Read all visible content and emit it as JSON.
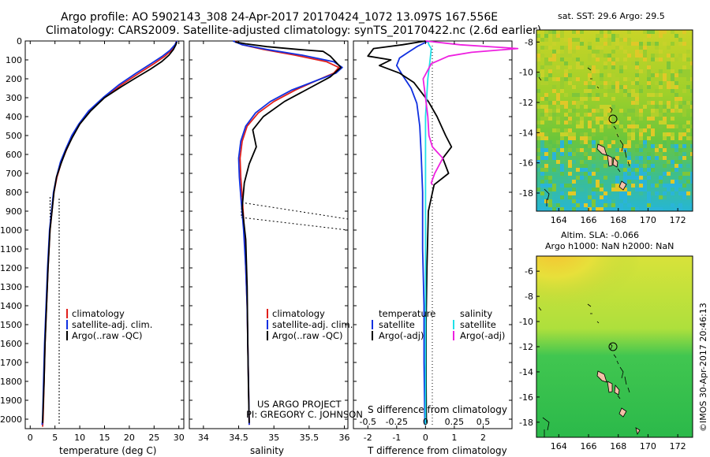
{
  "header": {
    "line1": "Argo profile: AO 5902143_308 24-Apr-2017 20170424_1072 13.097S 167.556E",
    "line2": "Climatology: CARS2009. Satellite-adjusted climatology: synTS_20170422.nc (2.6d earlier)"
  },
  "credits": {
    "project": "US ARGO PROJECT",
    "pi": "PI: GREGORY C. JOHNSON",
    "side_stamp": "©IMOS 30-Apr-2017 20:46:13"
  },
  "colors": {
    "climatology": "#e0201c",
    "satellite": "#1030e0",
    "argo": "#000000",
    "sat_salinity": "#20e0e8",
    "argo_salinity_adj": "#ee20e0"
  },
  "chart_data": [
    {
      "id": "temperature",
      "type": "line",
      "xlabel": "temperature (deg C)",
      "ylabel": "",
      "xlim": [
        -1,
        31
      ],
      "ylim": [
        2050,
        0
      ],
      "xticks": [
        0,
        5,
        10,
        15,
        20,
        25,
        30
      ],
      "yticks": [
        0,
        100,
        200,
        300,
        400,
        500,
        600,
        700,
        800,
        900,
        1000,
        1100,
        1200,
        1300,
        1400,
        1500,
        1600,
        1700,
        1800,
        1900,
        2000
      ],
      "legend": [
        "climatology",
        "satellite-adj. clim.",
        "Argo(..raw -QC)"
      ],
      "series": [
        {
          "name": "climatology",
          "color": "climatology",
          "x": [
            29.5,
            29.3,
            28.5,
            27.2,
            25.0,
            22.0,
            18.5,
            15.0,
            12.0,
            10.0,
            8.6,
            7.4,
            6.3,
            5.4,
            4.8,
            4.4,
            4.0,
            3.6,
            3.3,
            3.0,
            2.8,
            2.6,
            2.5
          ],
          "y": [
            0,
            20,
            50,
            80,
            120,
            170,
            230,
            300,
            370,
            440,
            500,
            570,
            640,
            720,
            800,
            900,
            1000,
            1200,
            1400,
            1600,
            1800,
            2000,
            2040
          ]
        },
        {
          "name": "satellite-adj. clim.",
          "color": "satellite",
          "x": [
            29.6,
            29.2,
            28.2,
            26.7,
            24.4,
            21.4,
            18.0,
            14.7,
            11.8,
            9.8,
            8.4,
            7.2,
            6.1,
            5.3,
            4.7,
            4.3,
            3.9,
            3.5,
            3.2,
            2.9,
            2.7,
            2.5,
            2.4
          ],
          "y": [
            0,
            20,
            50,
            80,
            120,
            170,
            230,
            300,
            370,
            440,
            500,
            570,
            640,
            720,
            800,
            900,
            1000,
            1200,
            1400,
            1600,
            1800,
            2000,
            2030
          ]
        },
        {
          "name": "Argo(..raw -QC)",
          "color": "argo",
          "x": [
            29.6,
            29.4,
            28.9,
            28.0,
            26.5,
            24.2,
            21.0,
            18.5,
            15.0,
            12.2,
            10.0,
            8.5,
            7.2,
            6.2,
            5.3,
            4.8,
            4.4,
            4.0,
            3.6,
            3.3,
            3.0,
            2.8,
            2.6,
            2.5
          ],
          "y": [
            5,
            20,
            45,
            75,
            110,
            150,
            200,
            240,
            300,
            370,
            440,
            510,
            580,
            650,
            720,
            800,
            900,
            1000,
            1200,
            1400,
            1600,
            1800,
            1950,
            2020
          ]
        }
      ]
    },
    {
      "id": "salinity",
      "type": "line",
      "xlabel": "salinity",
      "ylabel": "",
      "xlim": [
        33.8,
        36.05
      ],
      "ylim": [
        2050,
        0
      ],
      "xticks": [
        34,
        34.5,
        35,
        35.5,
        36
      ],
      "legend": [
        "climatology",
        "satellite-adj. clim.",
        "Argo(..raw -QC)"
      ],
      "series": [
        {
          "name": "climatology",
          "color": "climatology",
          "x": [
            34.45,
            34.55,
            34.85,
            35.3,
            35.75,
            35.92,
            35.85,
            35.6,
            35.3,
            35.0,
            34.78,
            34.62,
            34.55,
            34.52,
            34.53,
            34.55,
            34.58,
            34.6,
            34.62,
            34.63,
            34.64,
            34.65
          ],
          "y": [
            0,
            20,
            45,
            75,
            110,
            140,
            170,
            210,
            260,
            320,
            380,
            450,
            530,
            620,
            720,
            820,
            1000,
            1200,
            1400,
            1600,
            1800,
            2030
          ]
        },
        {
          "name": "satellite-adj. clim.",
          "color": "satellite",
          "x": [
            34.42,
            34.55,
            34.9,
            35.4,
            35.85,
            35.97,
            35.88,
            35.6,
            35.25,
            34.95,
            34.74,
            34.6,
            34.53,
            34.5,
            34.51,
            34.53,
            34.57,
            34.6,
            34.62,
            34.63,
            34.64,
            34.65
          ],
          "y": [
            0,
            20,
            45,
            75,
            110,
            140,
            170,
            210,
            260,
            320,
            380,
            450,
            530,
            620,
            720,
            820,
            1000,
            1200,
            1400,
            1600,
            1800,
            2030
          ]
        },
        {
          "name": "Argo(..raw -QC)",
          "color": "argo",
          "x": [
            34.45,
            34.6,
            34.9,
            35.35,
            35.7,
            35.8,
            35.95,
            35.8,
            35.5,
            35.15,
            34.85,
            34.7,
            34.75,
            34.65,
            34.58,
            34.55,
            34.6,
            34.62,
            34.63,
            34.64,
            34.65
          ],
          "y": [
            5,
            15,
            30,
            45,
            55,
            80,
            140,
            190,
            250,
            320,
            400,
            470,
            560,
            650,
            750,
            880,
            1050,
            1300,
            1600,
            1850,
            2020
          ]
        }
      ]
    },
    {
      "id": "difference",
      "type": "line",
      "xlabel": "T difference from climatology",
      "top_axis_label": "S difference from climatology",
      "xlim": [
        -2.5,
        3
      ],
      "ylim": [
        2050,
        0
      ],
      "xticks_t": [
        -2,
        -1,
        0,
        1,
        2
      ],
      "xticks_s": [
        -0.5,
        -0.25,
        0,
        0.25,
        0.5
      ],
      "legend_temperature_title": "temperature",
      "legend_salinity_title": "salinity",
      "legend": [
        "satellite",
        "Argo(-adj)",
        "satellite",
        "Argo(-adj)"
      ],
      "series": [
        {
          "name": "T satellite",
          "color": "satellite",
          "x": [
            0.1,
            -0.3,
            -0.6,
            -0.9,
            -1.0,
            -0.8,
            -0.5,
            -0.3,
            -0.2,
            -0.15,
            -0.1,
            -0.1,
            -0.05,
            -0.05,
            -0.02
          ],
          "y": [
            0,
            30,
            60,
            90,
            130,
            180,
            250,
            330,
            450,
            600,
            800,
            1100,
            1400,
            1700,
            2030
          ]
        },
        {
          "name": "T Argo(-adj)",
          "color": "argo",
          "x": [
            0,
            -0.8,
            -1.8,
            -2.0,
            -1.2,
            -1.6,
            -0.9,
            -0.4,
            -0.2,
            0.1,
            0.4,
            0.7,
            0.9,
            0.6,
            0.8,
            0.3,
            0.1,
            0.05,
            0.02,
            0.02,
            0.03
          ],
          "y": [
            0,
            20,
            40,
            80,
            100,
            130,
            170,
            220,
            260,
            320,
            400,
            500,
            560,
            620,
            700,
            760,
            900,
            1200,
            1500,
            1800,
            2020
          ]
        },
        {
          "name": "S satellite",
          "color": "sat_salinity",
          "x": [
            0.02,
            0.03,
            0.05,
            0.04,
            0.02,
            0.0,
            0.0,
            0.0,
            0.0,
            0.0,
            0.0,
            0.0
          ],
          "y": [
            0,
            20,
            40,
            100,
            200,
            400,
            600,
            800,
            1000,
            1400,
            1800,
            2030
          ]
        },
        {
          "name": "S Argo(-adj)",
          "color": "argo_salinity_adj",
          "x": [
            0.0,
            0.3,
            0.8,
            0.4,
            0.2,
            0.05,
            -0.02,
            0.0,
            0.02,
            0.03,
            0.06,
            0.15,
            0.08,
            0.05,
            0.06
          ],
          "y": [
            0,
            20,
            40,
            60,
            80,
            120,
            200,
            300,
            400,
            500,
            560,
            620,
            700,
            750,
            760
          ]
        }
      ]
    },
    {
      "id": "sst_map",
      "type": "heatmap",
      "title": "sat. SST: 29.6 Argo: 29.5",
      "xticks": [
        164,
        166,
        168,
        170,
        172
      ],
      "yticks": [
        -8,
        -10,
        -12,
        -14,
        -16,
        -18
      ],
      "xlim": [
        162.5,
        173
      ],
      "ylim": [
        -19.2,
        -7.2
      ],
      "marker": {
        "lon": 167.556,
        "lat": -13.097
      }
    },
    {
      "id": "sla_map",
      "type": "heatmap",
      "title_line1": "Altim. SLA: -0.066",
      "title_line2": "Argo h1000: NaN h2000: NaN",
      "xticks": [
        164,
        166,
        168,
        170,
        172
      ],
      "yticks": [
        -6,
        -8,
        -10,
        -12,
        -14,
        -16,
        -18
      ],
      "xlim": [
        162.5,
        173
      ],
      "ylim": [
        -19.2,
        -4.8
      ],
      "marker": {
        "lon": 167.556,
        "lat": -13.097
      }
    }
  ]
}
